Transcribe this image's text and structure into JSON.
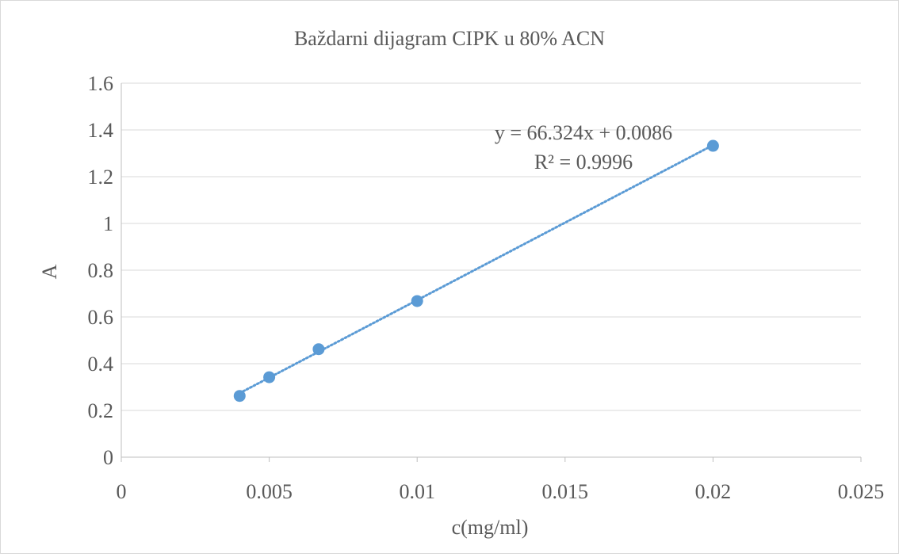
{
  "chart_data": {
    "type": "scatter",
    "title": "Baždarni dijagram CIPK u 80% ACN",
    "xlabel": "c(mg/ml)",
    "ylabel": "A",
    "xlim": [
      0,
      0.025
    ],
    "ylim": [
      0,
      1.6
    ],
    "x_ticks": [
      0,
      0.005,
      0.01,
      0.015,
      0.02,
      0.025
    ],
    "x_tick_labels": [
      "0",
      "0.005",
      "0.01",
      "0.015",
      "0.02",
      "0.025"
    ],
    "y_ticks": [
      0,
      0.2,
      0.4,
      0.6,
      0.8,
      1.0,
      1.2,
      1.4,
      1.6
    ],
    "y_tick_labels": [
      "0",
      "0.2",
      "0.4",
      "0.6",
      "0.8",
      "1",
      "1.2",
      "1.4",
      "1.6"
    ],
    "grid": "horizontal",
    "legend": "none",
    "series": [
      {
        "x": [
          0.004,
          0.005,
          0.00667,
          0.01,
          0.02
        ],
        "y": [
          0.262,
          0.342,
          0.462,
          0.668,
          1.332
        ],
        "color": "#5b9bd5"
      }
    ],
    "trendline": {
      "type": "linear",
      "slope": 66.324,
      "intercept": 0.0086,
      "x_range": [
        0.004,
        0.02
      ],
      "style": "dotted",
      "color": "#5b9bd5",
      "equation_label": "y = 66.324x + 0.0086",
      "r2_label": "R² = 0.9996"
    }
  }
}
